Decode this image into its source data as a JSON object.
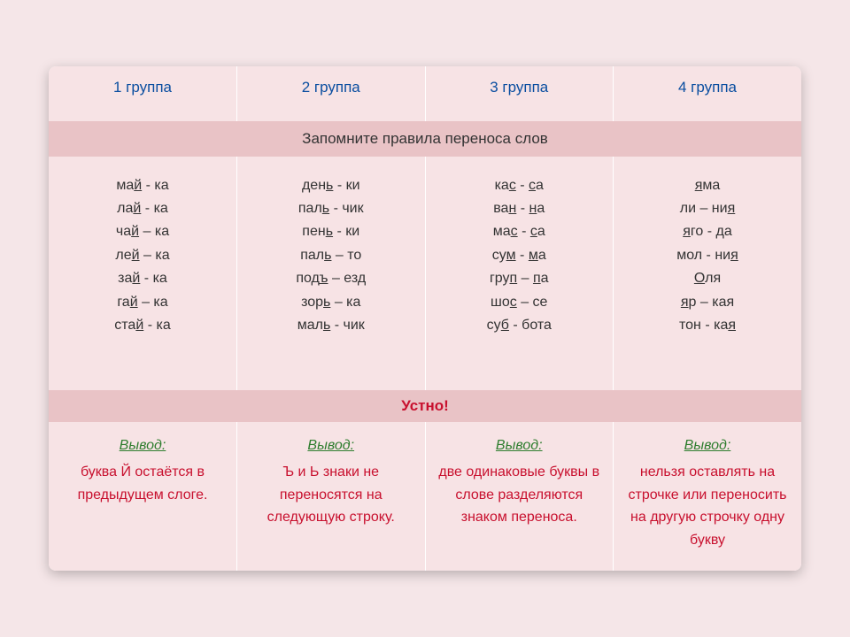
{
  "colors": {
    "page_bg": "#f5e6e8",
    "card_bg": "#ffffff",
    "row_light": "#f7e3e5",
    "row_dark": "#e9c3c6",
    "header_text": "#0a4ea0",
    "body_text": "#333333",
    "conclusion_text": "#c8102e",
    "vyvod_text": "#2e7d2e"
  },
  "typography": {
    "header_fontsize": 17,
    "banner_fontsize": 17,
    "words_fontsize": 16,
    "conclusion_fontsize": 16,
    "font_family": "Arial"
  },
  "headers": [
    "1 группа",
    "2 группа",
    "3 группа",
    "4 группа"
  ],
  "banner": "Запомните правила переноса слов",
  "words": {
    "col1": [
      {
        "pre": "ма",
        "u": "й",
        "post": " - ка"
      },
      {
        "pre": "ла",
        "u": "й",
        "post": " - ка"
      },
      {
        "pre": "ча",
        "u": "й",
        "post": " – ка"
      },
      {
        "pre": "ле",
        "u": "й",
        "post": " – ка"
      },
      {
        "pre": "за",
        "u": "й",
        "post": " - ка"
      },
      {
        "pre": "га",
        "u": "й",
        "post": " – ка"
      },
      {
        "pre": "ста",
        "u": "й",
        "post": " - ка"
      }
    ],
    "col2": [
      {
        "pre": "ден",
        "u": "ь",
        "post": " - ки"
      },
      {
        "pre": "пал",
        "u": "ь",
        "post": " - чик"
      },
      {
        "pre": "пен",
        "u": "ь",
        "post": " - ки"
      },
      {
        "pre": "пал",
        "u": "ь",
        "post": " – то"
      },
      {
        "pre": "под",
        "u": "ъ",
        "post": " – езд"
      },
      {
        "pre": "зор",
        "u": "ь",
        "post": " – ка"
      },
      {
        "pre": "мал",
        "u": "ь",
        "post": " - чик"
      }
    ],
    "col3": [
      {
        "pre": "ка",
        "u": "с",
        "post": " - ",
        "u2": "с",
        "post2": "а"
      },
      {
        "pre": "ва",
        "u": "н",
        "post": " - ",
        "u2": "н",
        "post2": "а"
      },
      {
        "pre": "ма",
        "u": "с",
        "post": " - ",
        "u2": "с",
        "post2": "а"
      },
      {
        "pre": "су",
        "u": "м",
        "post": " - ",
        "u2": "м",
        "post2": "а"
      },
      {
        "pre": "гру",
        "u": "п",
        "post": " – ",
        "u2": "п",
        "post2": "а"
      },
      {
        "pre": "шо",
        "u": "с",
        "post": " – се",
        "u2": "",
        "post2": ""
      },
      {
        "pre": "су",
        "u": "б",
        "post": " - бота",
        "u2": "",
        "post2": ""
      }
    ],
    "col4": [
      {
        "pre": "",
        "u": "я",
        "post": "ма"
      },
      {
        "pre": "ли – ни",
        "u": "я",
        "post": ""
      },
      {
        "pre": "",
        "u": "я",
        "post": "го - да"
      },
      {
        "pre": "мол - ни",
        "u": "я",
        "post": ""
      },
      {
        "pre": "",
        "u": "О",
        "post": "ля"
      },
      {
        "pre": "",
        "u": "я",
        "post": "р – кая"
      },
      {
        "pre": "тон - ка",
        "u": "я",
        "post": ""
      }
    ]
  },
  "oral": "Устно!",
  "vyvod_label": "Вывод:",
  "conclusions": [
    "буква Й остаётся в предыдущем слоге.",
    "Ъ и Ь знаки не переносятся на следующую строку.",
    "две одинаковые буквы в слове разделяются знаком переноса.",
    "нельзя оставлять на строчке или переносить на другую строчку одну букву"
  ]
}
